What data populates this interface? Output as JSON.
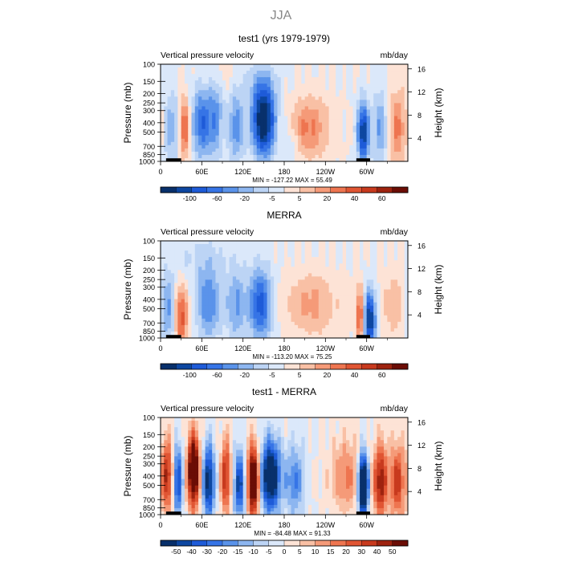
{
  "figure": {
    "title": "JJA"
  },
  "colormaps": {
    "abs": [
      "#08306b",
      "#0d47a1",
      "#1e5bd8",
      "#3674e6",
      "#5a93ea",
      "#8db6f0",
      "#bcd4f5",
      "#dbe8fa",
      "#fde3d6",
      "#f9c0a5",
      "#f59a78",
      "#ee7550",
      "#e05533",
      "#c83a1e",
      "#9e230f",
      "#6b0d05"
    ],
    "diff": [
      "#08306b",
      "#0d47a1",
      "#1e5bd8",
      "#3674e6",
      "#5a93ea",
      "#8db6f0",
      "#bcd4f5",
      "#dbe8fa",
      "#fde3d6",
      "#f9c0a5",
      "#f59a78",
      "#ee7550",
      "#e05533",
      "#c83a1e",
      "#9e230f",
      "#6b0d05"
    ]
  },
  "chart_data": [
    {
      "type": "heatmap",
      "title": "test1 (yrs 1979-1979)",
      "left_label": "Vertical pressure velocity",
      "right_label": "mb/day",
      "ylabel": "Pressure (mb)",
      "ylabel_right": "Height (km)",
      "xticks": [
        "0",
        "60E",
        "120E",
        "180",
        "120W",
        "60W"
      ],
      "xtick_values": [
        0,
        60,
        120,
        180,
        240,
        300
      ],
      "xlim": [
        0,
        360
      ],
      "yticks": [
        "100",
        "150",
        "200",
        "250",
        "300",
        "400",
        "500",
        "700",
        "850",
        "1000"
      ],
      "ytick_values": [
        100,
        150,
        200,
        250,
        300,
        400,
        500,
        700,
        850,
        1000
      ],
      "ylim": [
        1000,
        100
      ],
      "yscale": "log",
      "height_ticks": [
        "16",
        "12",
        "8",
        "4"
      ],
      "height_values": [
        16,
        12,
        8,
        4
      ],
      "colorscale": "abs",
      "levels": [
        "-100",
        "-60",
        "-20",
        "-5",
        "5",
        "20",
        "40",
        "60"
      ],
      "stats": "MIN = -127.22   MAX =   55.49",
      "features": [
        {
          "lon": 15,
          "p": 450,
          "w": -30,
          "sx": 8,
          "sp": 0.7
        },
        {
          "lon": 35,
          "p": 450,
          "w": 55,
          "sx": 5,
          "sp": 0.5
        },
        {
          "lon": 60,
          "p": 400,
          "w": -60,
          "sx": 10,
          "sp": 0.6
        },
        {
          "lon": 80,
          "p": 350,
          "w": -40,
          "sx": 8,
          "sp": 0.7
        },
        {
          "lon": 110,
          "p": 450,
          "w": -45,
          "sx": 8,
          "sp": 0.6
        },
        {
          "lon": 150,
          "p": 380,
          "w": -110,
          "sx": 12,
          "sp": 0.6
        },
        {
          "lon": 190,
          "p": 650,
          "w": -20,
          "sx": 8,
          "sp": 0.5
        },
        {
          "lon": 215,
          "p": 450,
          "w": 40,
          "sx": 22,
          "sp": 0.5
        },
        {
          "lon": 295,
          "p": 500,
          "w": -90,
          "sx": 6,
          "sp": 0.5
        },
        {
          "lon": 320,
          "p": 450,
          "w": -40,
          "sx": 8,
          "sp": 0.6
        },
        {
          "lon": 345,
          "p": 450,
          "w": 40,
          "sx": 10,
          "sp": 0.6
        },
        {
          "lon": 140,
          "p": 150,
          "w": -15,
          "sx": 25,
          "sp": 0.4
        },
        {
          "lon": 90,
          "p": 130,
          "w": 12,
          "sx": 20,
          "sp": 0.3
        }
      ]
    },
    {
      "type": "heatmap",
      "title": "MERRA",
      "left_label": "Vertical pressure velocity",
      "right_label": "mb/day",
      "ylabel": "Pressure (mb)",
      "ylabel_right": "Height (km)",
      "xticks": [
        "0",
        "60E",
        "120E",
        "180",
        "120W",
        "60W"
      ],
      "xtick_values": [
        0,
        60,
        120,
        180,
        240,
        300
      ],
      "xlim": [
        0,
        360
      ],
      "yticks": [
        "100",
        "150",
        "200",
        "250",
        "300",
        "400",
        "500",
        "700",
        "850",
        "1000"
      ],
      "ytick_values": [
        100,
        150,
        200,
        250,
        300,
        400,
        500,
        700,
        850,
        1000
      ],
      "ylim": [
        1000,
        100
      ],
      "yscale": "log",
      "height_ticks": [
        "16",
        "12",
        "8",
        "4"
      ],
      "height_values": [
        16,
        12,
        8,
        4
      ],
      "colorscale": "abs",
      "levels": [
        "-100",
        "-60",
        "-20",
        "-5",
        "5",
        "20",
        "40",
        "60"
      ],
      "stats": "MIN = -113.20   MAX =   75.25",
      "features": [
        {
          "lon": 10,
          "p": 500,
          "w": -40,
          "sx": 8,
          "sp": 0.6
        },
        {
          "lon": 30,
          "p": 600,
          "w": 60,
          "sx": 6,
          "sp": 0.5
        },
        {
          "lon": 70,
          "p": 450,
          "w": -50,
          "sx": 12,
          "sp": 0.6
        },
        {
          "lon": 110,
          "p": 450,
          "w": -40,
          "sx": 10,
          "sp": 0.6
        },
        {
          "lon": 145,
          "p": 450,
          "w": -70,
          "sx": 12,
          "sp": 0.6
        },
        {
          "lon": 220,
          "p": 450,
          "w": 30,
          "sx": 25,
          "sp": 0.5
        },
        {
          "lon": 290,
          "p": 600,
          "w": 55,
          "sx": 4,
          "sp": 0.5
        },
        {
          "lon": 305,
          "p": 650,
          "w": -90,
          "sx": 6,
          "sp": 0.5
        },
        {
          "lon": 340,
          "p": 450,
          "w": 20,
          "sx": 12,
          "sp": 0.6
        },
        {
          "lon": 60,
          "p": 150,
          "w": -15,
          "sx": 30,
          "sp": 0.4
        }
      ]
    },
    {
      "type": "heatmap",
      "title": "test1 - MERRA",
      "left_label": "Vertical pressure velocity",
      "right_label": "mb/day",
      "ylabel": "Pressure (mb)",
      "ylabel_right": "Height (km)",
      "xticks": [
        "0",
        "60E",
        "120E",
        "180",
        "120W",
        "60W"
      ],
      "xtick_values": [
        0,
        60,
        120,
        180,
        240,
        300
      ],
      "xlim": [
        0,
        360
      ],
      "yticks": [
        "100",
        "150",
        "200",
        "250",
        "300",
        "400",
        "500",
        "700",
        "850",
        "1000"
      ],
      "ytick_values": [
        100,
        150,
        200,
        250,
        300,
        400,
        500,
        700,
        850,
        1000
      ],
      "ylim": [
        1000,
        100
      ],
      "yscale": "log",
      "height_ticks": [
        "16",
        "12",
        "8",
        "4"
      ],
      "height_values": [
        16,
        12,
        8,
        4
      ],
      "colorscale": "diff",
      "levels": [
        "-50",
        "-40",
        "-30",
        "-20",
        "-15",
        "-10",
        "-5",
        "0",
        "5",
        "10",
        "15",
        "20",
        "30",
        "40",
        "50"
      ],
      "stats": "MIN = -84.48   MAX =   91.33",
      "features": [
        {
          "lon": 10,
          "p": 400,
          "w": 40,
          "sx": 6,
          "sp": 0.6
        },
        {
          "lon": 25,
          "p": 450,
          "w": -40,
          "sx": 5,
          "sp": 0.6
        },
        {
          "lon": 48,
          "p": 350,
          "w": 70,
          "sx": 6,
          "sp": 0.6
        },
        {
          "lon": 70,
          "p": 450,
          "w": -50,
          "sx": 6,
          "sp": 0.6
        },
        {
          "lon": 95,
          "p": 400,
          "w": 40,
          "sx": 5,
          "sp": 0.6
        },
        {
          "lon": 115,
          "p": 500,
          "w": -40,
          "sx": 6,
          "sp": 0.6
        },
        {
          "lon": 135,
          "p": 450,
          "w": 65,
          "sx": 6,
          "sp": 0.6
        },
        {
          "lon": 160,
          "p": 400,
          "w": -60,
          "sx": 10,
          "sp": 0.6
        },
        {
          "lon": 195,
          "p": 450,
          "w": -25,
          "sx": 10,
          "sp": 0.6
        },
        {
          "lon": 270,
          "p": 400,
          "w": 20,
          "sx": 15,
          "sp": 0.6
        },
        {
          "lon": 295,
          "p": 500,
          "w": -80,
          "sx": 5,
          "sp": 0.5
        },
        {
          "lon": 320,
          "p": 450,
          "w": 45,
          "sx": 7,
          "sp": 0.6
        },
        {
          "lon": 345,
          "p": 450,
          "w": 35,
          "sx": 8,
          "sp": 0.6
        }
      ]
    }
  ]
}
